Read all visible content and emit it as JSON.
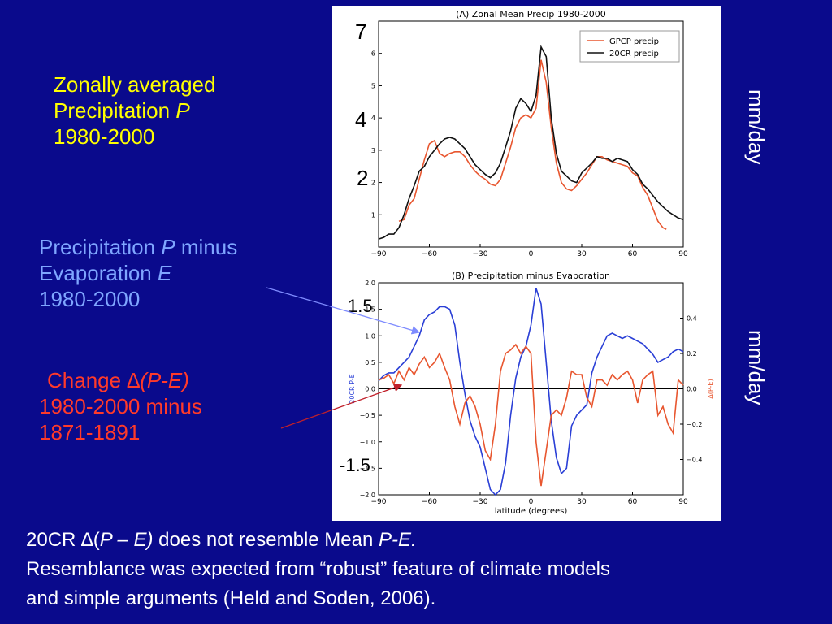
{
  "left_text": {
    "block1": {
      "line1": "Zonally averaged",
      "line2_prefix": "Precipitation ",
      "line2_italic": "P",
      "line3": "1980-2000"
    },
    "block2": {
      "line1_prefix": "Precipitation ",
      "line1_italic": "P",
      "line1_suffix": " minus",
      "line2_prefix": "Evaporation ",
      "line2_italic": "E",
      "line3": "1980-2000"
    },
    "block3": {
      "line1_prefix": "Change ",
      "line1_italic": "∆(P-E)",
      "line2": "1980-2000 minus",
      "line3": "1871-1891"
    }
  },
  "overlay_labels": {
    "seven": "7",
    "four": "4",
    "two": "2",
    "p15": "1.5",
    "m15": "-1.5"
  },
  "units": {
    "top": "mm/day",
    "bottom": "mm/day"
  },
  "bottom_text": {
    "line1_a": "20CR  ∆(",
    "line1_b": "P – E)",
    "line1_c": "  does not resemble Mean ",
    "line1_d": "P-E.",
    "line2": "Resemblance was expected from “robust” feature of climate models",
    "line3": "and simple arguments (Held and Soden, 2006)."
  },
  "chart_data": [
    {
      "type": "line",
      "title": "(A) Zonal Mean Precip 1980-2000",
      "xlabel": "",
      "ylabel": "",
      "xlim": [
        -90,
        90
      ],
      "ylim": [
        0,
        7
      ],
      "xticks": [
        -90,
        -60,
        -30,
        0,
        30,
        60,
        90
      ],
      "yticks": [
        1,
        2,
        3,
        4,
        5,
        6
      ],
      "legend_position": "top-right",
      "series": [
        {
          "name": "GPCP precip",
          "color": "#e8562f",
          "x": [
            -78,
            -75,
            -72,
            -69,
            -66,
            -63,
            -60,
            -57,
            -54,
            -51,
            -48,
            -45,
            -42,
            -39,
            -36,
            -33,
            -30,
            -27,
            -24,
            -21,
            -18,
            -15,
            -12,
            -9,
            -6,
            -3,
            0,
            3,
            6,
            9,
            12,
            15,
            18,
            21,
            24,
            27,
            30,
            33,
            36,
            39,
            42,
            45,
            48,
            51,
            54,
            57,
            60,
            63,
            66,
            69,
            72,
            75,
            78,
            80
          ],
          "y": [
            0.8,
            0.85,
            1.3,
            1.5,
            2.1,
            2.7,
            3.2,
            3.3,
            2.9,
            2.8,
            2.9,
            2.95,
            2.95,
            2.8,
            2.55,
            2.35,
            2.2,
            2.1,
            1.95,
            1.9,
            2.1,
            2.6,
            3.1,
            3.7,
            4.0,
            4.1,
            4.0,
            4.3,
            5.8,
            5.1,
            3.7,
            2.6,
            2.0,
            1.8,
            1.75,
            1.9,
            2.1,
            2.3,
            2.55,
            2.8,
            2.8,
            2.7,
            2.65,
            2.6,
            2.55,
            2.5,
            2.3,
            2.2,
            1.85,
            1.6,
            1.2,
            0.8,
            0.6,
            0.55
          ]
        },
        {
          "name": "20CR precip",
          "color": "#111111",
          "x": [
            -90,
            -87,
            -84,
            -81,
            -78,
            -75,
            -72,
            -69,
            -66,
            -63,
            -60,
            -57,
            -54,
            -51,
            -48,
            -45,
            -42,
            -39,
            -36,
            -33,
            -30,
            -27,
            -24,
            -21,
            -18,
            -15,
            -12,
            -9,
            -6,
            -3,
            0,
            3,
            6,
            9,
            12,
            15,
            18,
            21,
            24,
            27,
            30,
            33,
            36,
            39,
            42,
            45,
            48,
            51,
            54,
            57,
            60,
            63,
            66,
            69,
            72,
            75,
            78,
            81,
            84,
            87,
            90
          ],
          "y": [
            0.25,
            0.3,
            0.4,
            0.4,
            0.6,
            1.0,
            1.5,
            1.9,
            2.35,
            2.5,
            2.8,
            3.0,
            3.2,
            3.35,
            3.4,
            3.35,
            3.2,
            3.05,
            2.8,
            2.55,
            2.4,
            2.25,
            2.15,
            2.3,
            2.6,
            3.1,
            3.6,
            4.3,
            4.6,
            4.45,
            4.2,
            4.7,
            6.2,
            5.9,
            4.0,
            2.9,
            2.35,
            2.2,
            2.05,
            2.0,
            2.3,
            2.45,
            2.6,
            2.8,
            2.75,
            2.75,
            2.65,
            2.75,
            2.7,
            2.65,
            2.4,
            2.25,
            1.95,
            1.8,
            1.6,
            1.4,
            1.25,
            1.1,
            1.0,
            0.9,
            0.85
          ]
        }
      ]
    },
    {
      "type": "line",
      "title": "(B) Precipitation minus Evaporation",
      "xlabel": "latitude (degrees)",
      "ylabel": "20CR P-E",
      "ylabel_right": "∆(P-E)",
      "xlim": [
        -90,
        90
      ],
      "ylim": [
        -2.0,
        2.0
      ],
      "ylim_right": [
        -0.6,
        0.6
      ],
      "xticks": [
        -90,
        -60,
        -30,
        0,
        30,
        60,
        90
      ],
      "yticks": [
        -2.0,
        -1.5,
        -1.0,
        -0.5,
        0.0,
        0.5,
        1.0,
        1.5,
        2.0
      ],
      "yticks_right": [
        -0.4,
        -0.2,
        0.0,
        0.2,
        0.4
      ],
      "series": [
        {
          "name": "",
          "axis": "left",
          "color": "#2a3fd6",
          "x": [
            -90,
            -87,
            -84,
            -81,
            -78,
            -75,
            -72,
            -69,
            -66,
            -63,
            -60,
            -57,
            -54,
            -51,
            -48,
            -45,
            -42,
            -39,
            -36,
            -33,
            -30,
            -27,
            -24,
            -21,
            -18,
            -15,
            -12,
            -9,
            -6,
            -3,
            0,
            3,
            6,
            9,
            12,
            15,
            18,
            21,
            24,
            27,
            30,
            33,
            36,
            39,
            42,
            45,
            48,
            51,
            54,
            57,
            60,
            63,
            66,
            69,
            72,
            75,
            78,
            81,
            84,
            87,
            90
          ],
          "y": [
            0.15,
            0.25,
            0.3,
            0.3,
            0.4,
            0.5,
            0.6,
            0.8,
            1.0,
            1.3,
            1.4,
            1.45,
            1.55,
            1.55,
            1.5,
            1.2,
            0.5,
            -0.1,
            -0.6,
            -0.9,
            -1.1,
            -1.5,
            -1.9,
            -2.0,
            -1.9,
            -1.4,
            -0.5,
            0.2,
            0.6,
            0.8,
            1.2,
            1.9,
            1.6,
            0.5,
            -0.6,
            -1.3,
            -1.6,
            -1.5,
            -0.7,
            -0.5,
            -0.4,
            -0.3,
            0.3,
            0.6,
            0.8,
            1.0,
            1.05,
            1.0,
            0.95,
            1.0,
            0.95,
            0.9,
            0.85,
            0.75,
            0.65,
            0.5,
            0.55,
            0.6,
            0.7,
            0.75,
            0.7
          ]
        },
        {
          "name": "",
          "axis": "right",
          "color": "#e8562f",
          "x": [
            -90,
            -87,
            -84,
            -81,
            -78,
            -75,
            -72,
            -69,
            -66,
            -63,
            -60,
            -57,
            -54,
            -51,
            -48,
            -45,
            -42,
            -39,
            -36,
            -33,
            -30,
            -27,
            -24,
            -21,
            -18,
            -15,
            -12,
            -9,
            -6,
            -3,
            0,
            3,
            6,
            9,
            12,
            15,
            18,
            21,
            24,
            27,
            30,
            33,
            36,
            39,
            42,
            45,
            48,
            51,
            54,
            57,
            60,
            63,
            66,
            69,
            72,
            75,
            78,
            81,
            84,
            87,
            90
          ],
          "y": [
            0.05,
            0.06,
            0.08,
            0.03,
            0.1,
            0.05,
            0.12,
            0.08,
            0.14,
            0.18,
            0.12,
            0.15,
            0.2,
            0.12,
            0.05,
            -0.1,
            -0.2,
            -0.08,
            -0.04,
            -0.1,
            -0.2,
            -0.35,
            -0.4,
            -0.2,
            0.1,
            0.2,
            0.22,
            0.25,
            0.2,
            0.24,
            0.2,
            -0.3,
            -0.55,
            -0.35,
            -0.15,
            -0.12,
            -0.15,
            -0.05,
            0.1,
            0.08,
            0.08,
            -0.05,
            -0.1,
            0.05,
            0.05,
            0.02,
            0.08,
            0.05,
            0.08,
            0.1,
            0.05,
            -0.08,
            0.05,
            0.08,
            0.1,
            -0.15,
            -0.1,
            -0.2,
            -0.25,
            0.05,
            0.02
          ]
        }
      ]
    }
  ]
}
